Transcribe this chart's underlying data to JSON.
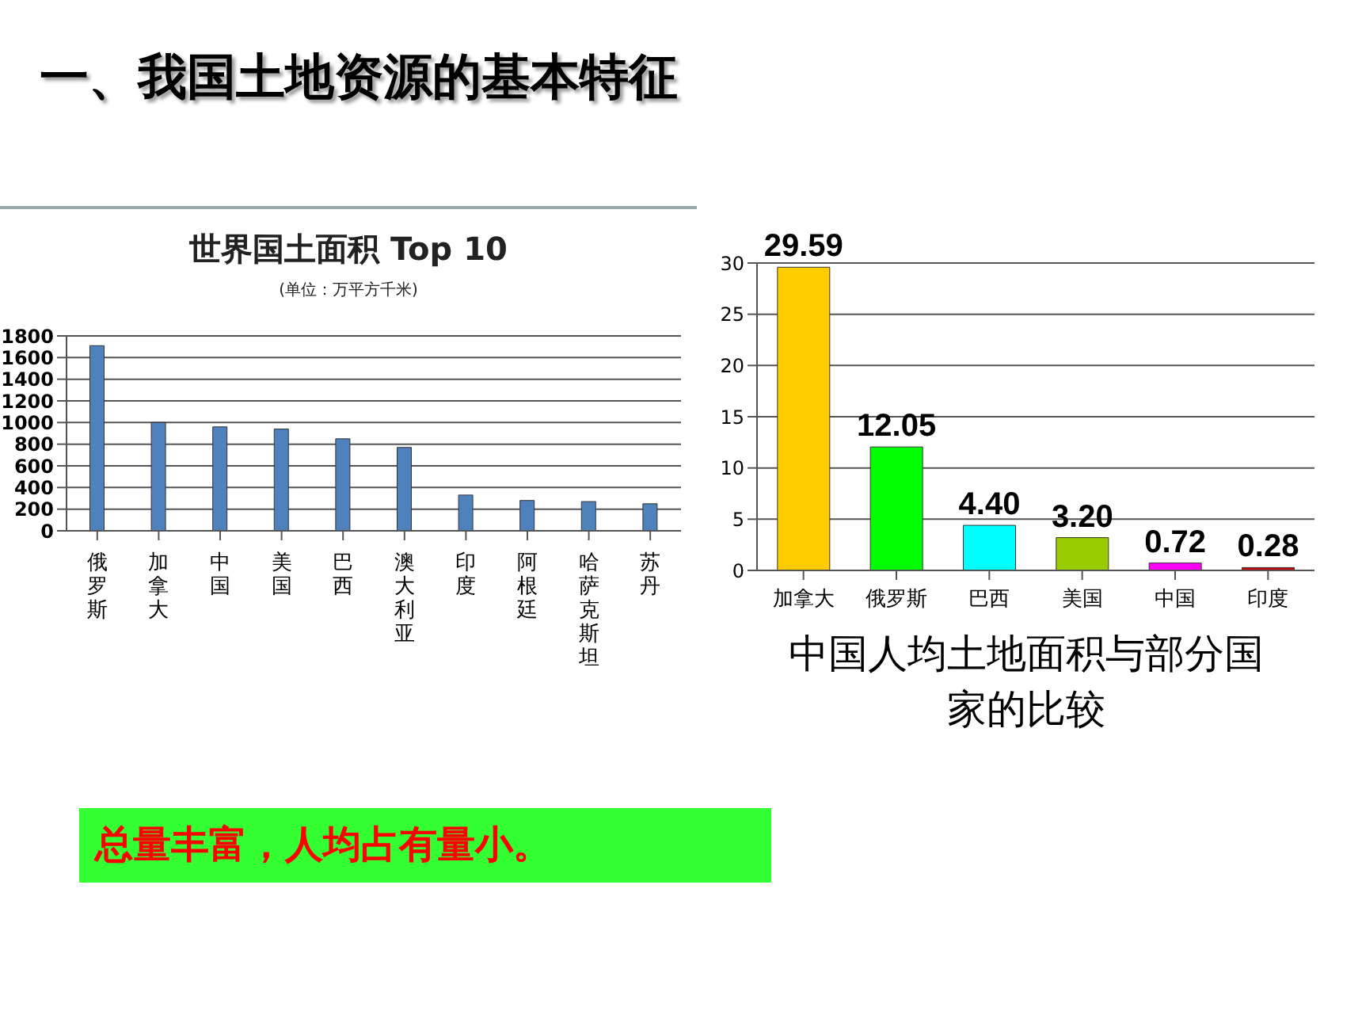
{
  "chart_data": [
    {
      "type": "bar",
      "title": "世界国土面积 Top 10",
      "subtitle": "(单位：万平方千米)",
      "categories": [
        "俄罗斯",
        "加拿大",
        "中国",
        "美国",
        "巴西",
        "澳大利亚",
        "印度",
        "阿根廷",
        "哈萨克斯坦",
        "苏丹"
      ],
      "values": [
        1710,
        1000,
        960,
        940,
        850,
        770,
        330,
        280,
        270,
        250
      ],
      "color": "#4f81bd",
      "ylim": [
        0,
        1800
      ],
      "yticks": [
        0,
        200,
        400,
        600,
        800,
        1000,
        1200,
        1400,
        1600,
        1800
      ],
      "grid": "y",
      "annotations": [
        "一、我国土地资源的基本特征",
        "总量丰富，人均占有量小。"
      ]
    },
    {
      "type": "bar",
      "title": "中国人均土地面积与部分国家的比较",
      "categories": [
        "加拿大",
        "俄罗斯",
        "巴西",
        "美国",
        "中国",
        "印度"
      ],
      "values": [
        29.59,
        12.05,
        4.4,
        3.2,
        0.72,
        0.28
      ],
      "value_labels": [
        "29.59",
        "12.05",
        "4.40",
        "3.20",
        "0.72",
        "0.28"
      ],
      "colors": [
        "#ffcc00",
        "#00ff00",
        "#00ffff",
        "#99cc00",
        "#ff00ff",
        "#cc0000"
      ],
      "ylim": [
        0,
        30
      ],
      "yticks": [
        0,
        5,
        10,
        15,
        20,
        25,
        30
      ],
      "grid": "y"
    }
  ]
}
